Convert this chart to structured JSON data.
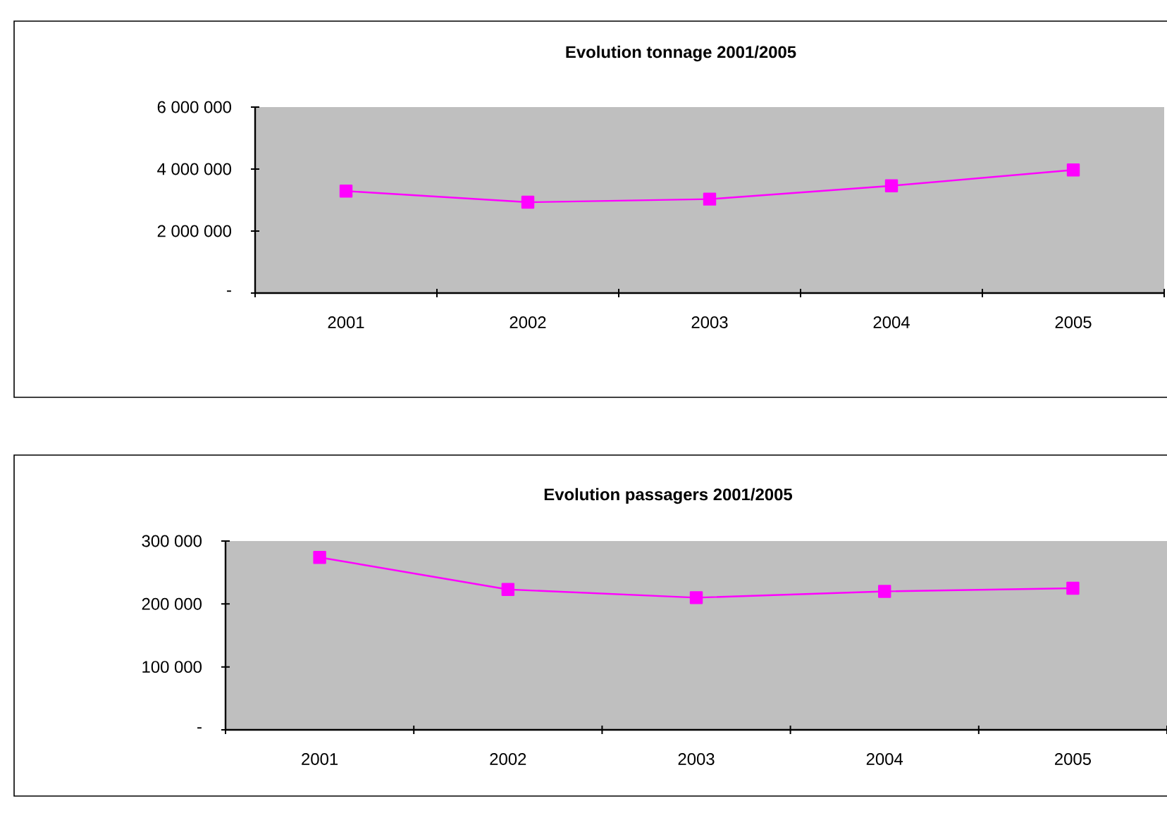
{
  "chart_data": [
    {
      "type": "line",
      "title": "Evolution tonnage 2001/2005",
      "categories": [
        "2001",
        "2002",
        "2003",
        "2004",
        "2005"
      ],
      "series": [
        {
          "color": "#ff00ff",
          "values": [
            3290000,
            2930000,
            3030000,
            3460000,
            3970000
          ]
        }
      ],
      "ylim": [
        0,
        6000000
      ],
      "yticks": [
        {
          "value": 0,
          "label": "-"
        },
        {
          "value": 2000000,
          "label": "2 000 000"
        },
        {
          "value": 4000000,
          "label": "4 000 000"
        },
        {
          "value": 6000000,
          "label": "6 000 000"
        }
      ],
      "marker": "square"
    },
    {
      "type": "line",
      "title": "Evolution passagers 2001/2005",
      "categories": [
        "2001",
        "2002",
        "2003",
        "2004",
        "2005"
      ],
      "series": [
        {
          "color": "#ff00ff",
          "values": [
            274000,
            223000,
            210000,
            220000,
            225000
          ]
        }
      ],
      "ylim": [
        0,
        300000
      ],
      "yticks": [
        {
          "value": 0,
          "label": "-"
        },
        {
          "value": 100000,
          "label": "100 000"
        },
        {
          "value": 200000,
          "label": "200 000"
        },
        {
          "value": 300000,
          "label": "300 000"
        }
      ],
      "marker": "square"
    }
  ]
}
